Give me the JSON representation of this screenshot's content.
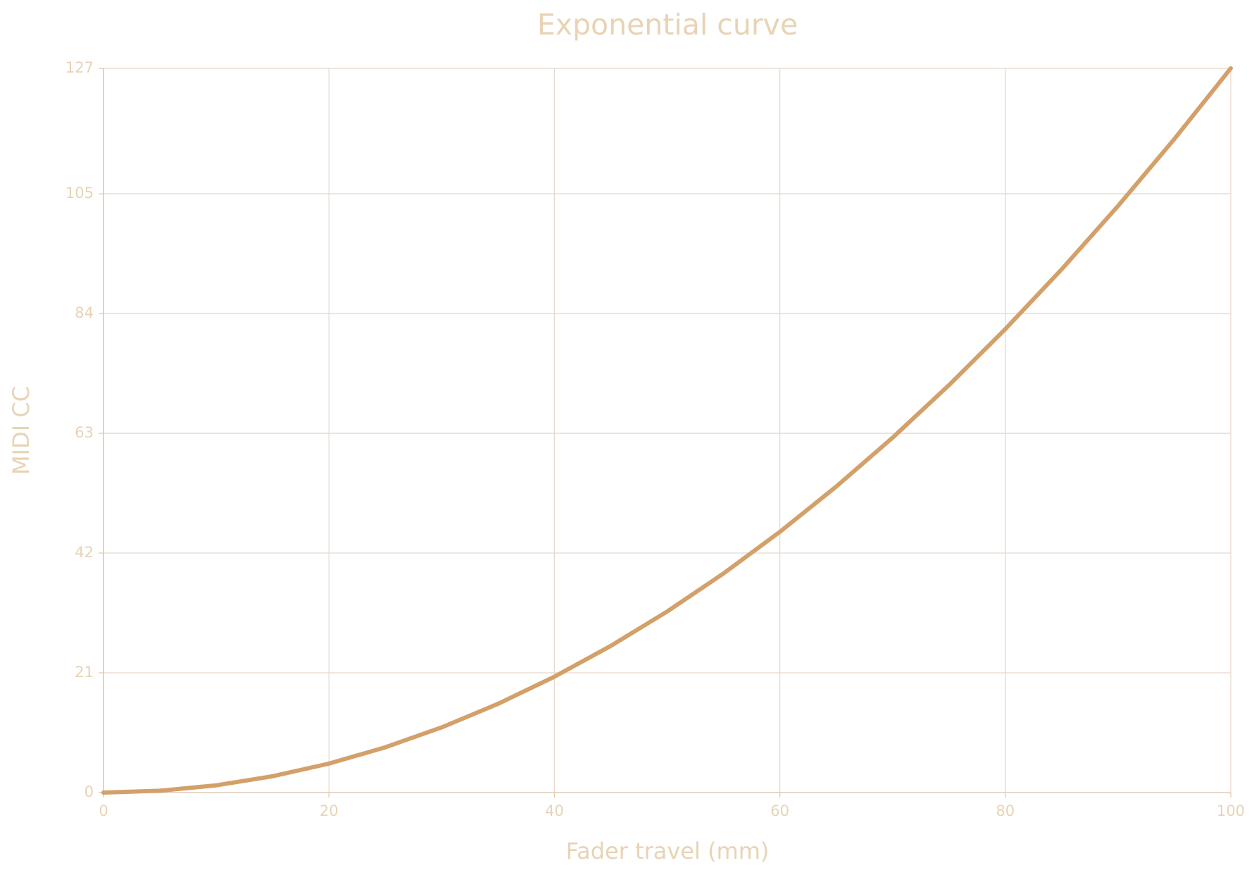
{
  "chart_data": {
    "type": "line",
    "title": "Exponential curve",
    "x_label": "Fader travel (mm)",
    "y_label": "MIDI CC",
    "x": [
      0,
      5,
      10,
      15,
      20,
      25,
      30,
      35,
      40,
      45,
      50,
      55,
      60,
      65,
      70,
      75,
      80,
      85,
      90,
      95,
      100
    ],
    "series": [
      {
        "color": "#d4a06a",
        "values": [
          0,
          0.32,
          1.27,
          2.86,
          5.08,
          7.94,
          11.43,
          15.56,
          20.32,
          25.72,
          31.75,
          38.42,
          45.72,
          53.66,
          62.23,
          71.44,
          81.28,
          91.76,
          102.87,
          114.62,
          127
        ]
      }
    ],
    "xlim": [
      0,
      100
    ],
    "xticks": [
      0,
      20,
      40,
      60,
      80,
      100
    ],
    "ylim": [
      0,
      127
    ],
    "yticks": [
      0,
      21,
      42,
      63,
      84,
      105,
      127
    ],
    "grid": true
  }
}
